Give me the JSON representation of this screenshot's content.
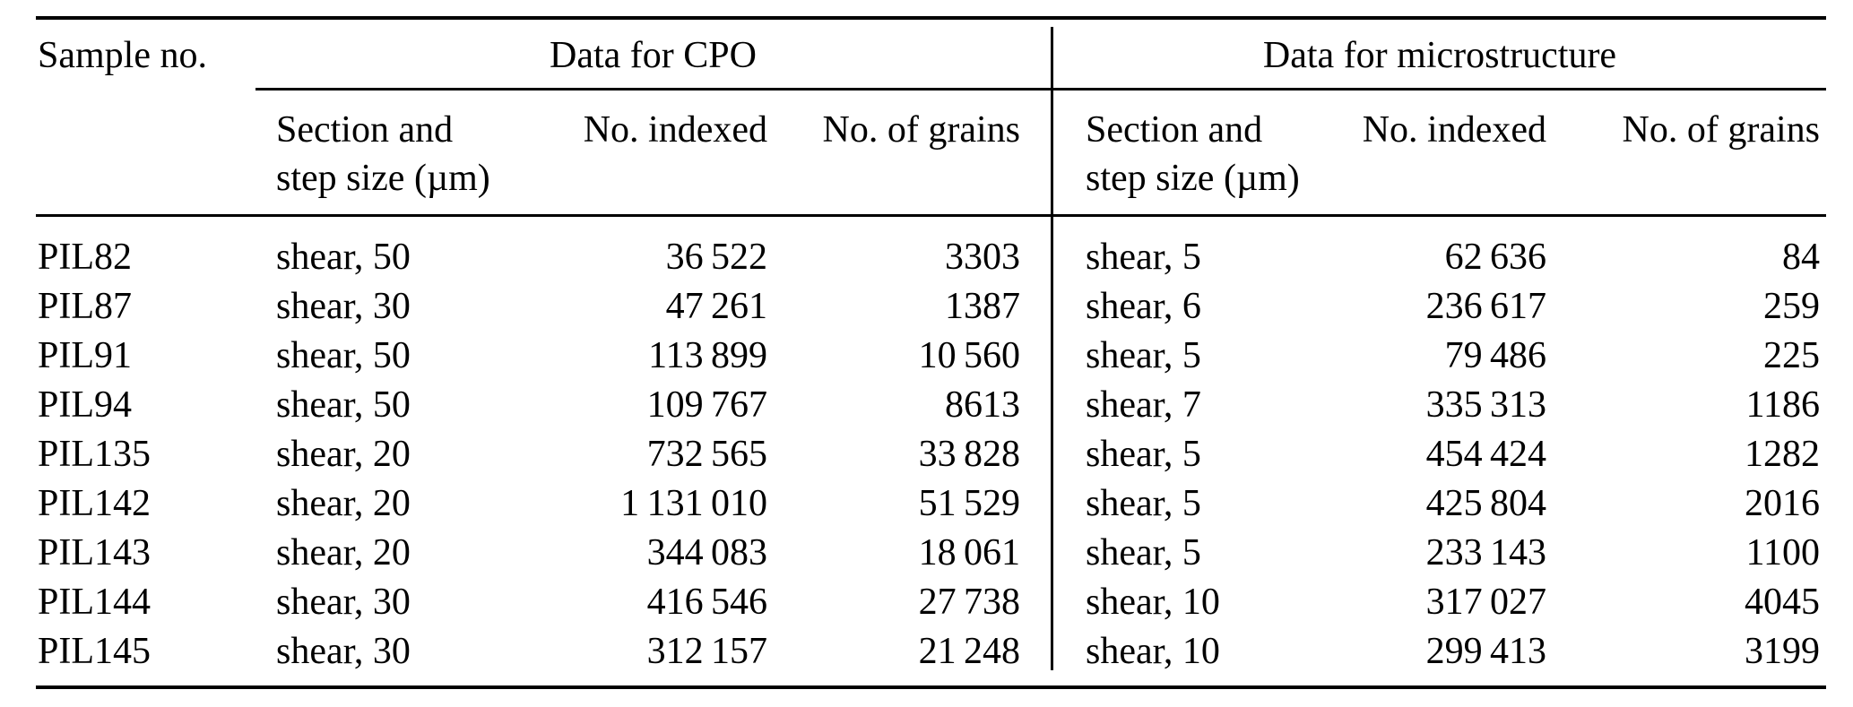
{
  "table": {
    "header": {
      "sample": "Sample no.",
      "group_cpo": "Data for CPO",
      "group_micro": "Data for microstructure",
      "sub_section_line1": "Section and",
      "sub_section_line2": "step size (µm)",
      "sub_indexed": "No. indexed",
      "sub_grains": "No. of grains"
    },
    "rows": [
      {
        "cells": [
          "PIL82",
          "shear, 50",
          "36 522",
          "3303",
          "shear, 5",
          "62 636",
          "84"
        ]
      },
      {
        "cells": [
          "PIL87",
          "shear, 30",
          "47 261",
          "1387",
          "shear, 6",
          "236 617",
          "259"
        ]
      },
      {
        "cells": [
          "PIL91",
          "shear, 50",
          "113 899",
          "10 560",
          "shear, 5",
          "79 486",
          "225"
        ]
      },
      {
        "cells": [
          "PIL94",
          "shear, 50",
          "109 767",
          "8613",
          "shear, 7",
          "335 313",
          "1186"
        ]
      },
      {
        "cells": [
          "PIL135",
          "shear, 20",
          "732 565",
          "33 828",
          "shear, 5",
          "454 424",
          "1282"
        ]
      },
      {
        "cells": [
          "PIL142",
          "shear, 20",
          "1 131 010",
          "51 529",
          "shear, 5",
          "425 804",
          "2016"
        ]
      },
      {
        "cells": [
          "PIL143",
          "shear, 20",
          "344 083",
          "18 061",
          "shear, 5",
          "233 143",
          "1100"
        ]
      },
      {
        "cells": [
          "PIL144",
          "shear, 30",
          "416 546",
          "27 738",
          "shear, 10",
          "317 027",
          "4045"
        ]
      },
      {
        "cells": [
          "PIL145",
          "shear, 30",
          "312 157",
          "21 248",
          "shear, 10",
          "299 413",
          "3199"
        ]
      }
    ]
  },
  "colors": {
    "background": "#ffffff",
    "text": "#000000",
    "rule": "#000000"
  }
}
